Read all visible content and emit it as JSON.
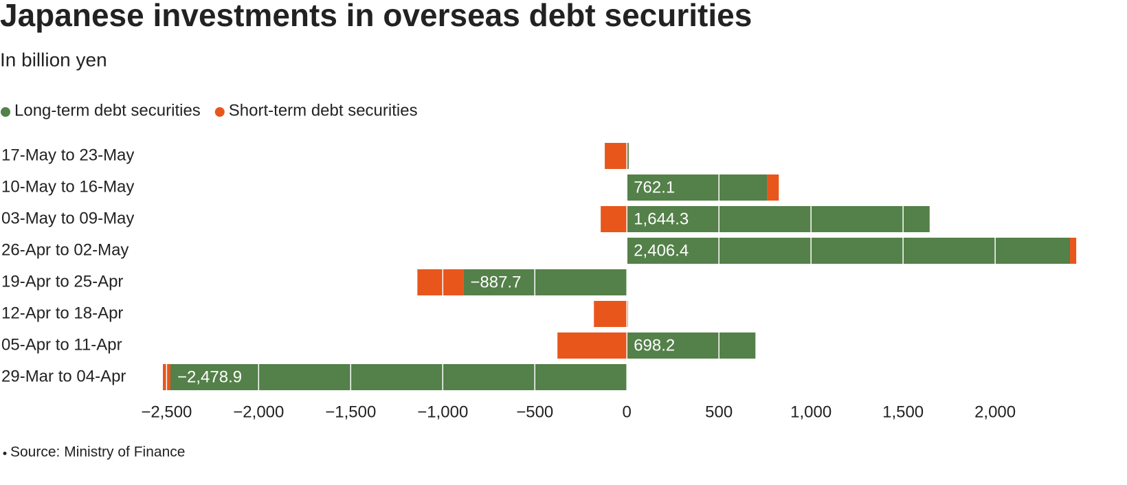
{
  "chart_data": {
    "type": "stacked-bar-horizontal",
    "title": "Japanese investments in overseas debt securities",
    "subtitle": "In billion yen",
    "source": "Source: Ministry of Finance",
    "categories": [
      "17-May to 23-May",
      "10-May to 16-May",
      "03-May to 09-May",
      "26-Apr to 02-May",
      "19-Apr to 25-Apr",
      "12-Apr to 18-Apr",
      "05-Apr to 11-Apr",
      "29-Mar to 04-Apr"
    ],
    "series": [
      {
        "name": "Long-term debt securities",
        "color": "#548049",
        "values": [
          10,
          762.1,
          1644.3,
          2406.4,
          -887.7,
          5,
          698.2,
          -2478.9
        ],
        "value_labels": [
          null,
          "762.1",
          "1,644.3",
          "2,406.4",
          "−887.7",
          null,
          "698.2",
          "−2,478.9"
        ]
      },
      {
        "name": "Short-term debt securities",
        "color": "#e8561c",
        "values": [
          -120,
          63,
          -142,
          34,
          -250,
          -179,
          -377,
          -41
        ]
      }
    ],
    "xlim": [
      -2520,
      2440
    ],
    "xticks": [
      {
        "value": -2500,
        "label": "−2,500"
      },
      {
        "value": -2000,
        "label": "−2,000"
      },
      {
        "value": -1500,
        "label": "−1,500"
      },
      {
        "value": -1000,
        "label": "−1,000"
      },
      {
        "value": -500,
        "label": "−500"
      },
      0,
      500,
      {
        "value": 1000,
        "label": "1,000"
      },
      {
        "value": 1500,
        "label": "1,500"
      },
      {
        "value": 2000,
        "label": "2,000"
      }
    ],
    "grid": true,
    "legend": "top"
  }
}
